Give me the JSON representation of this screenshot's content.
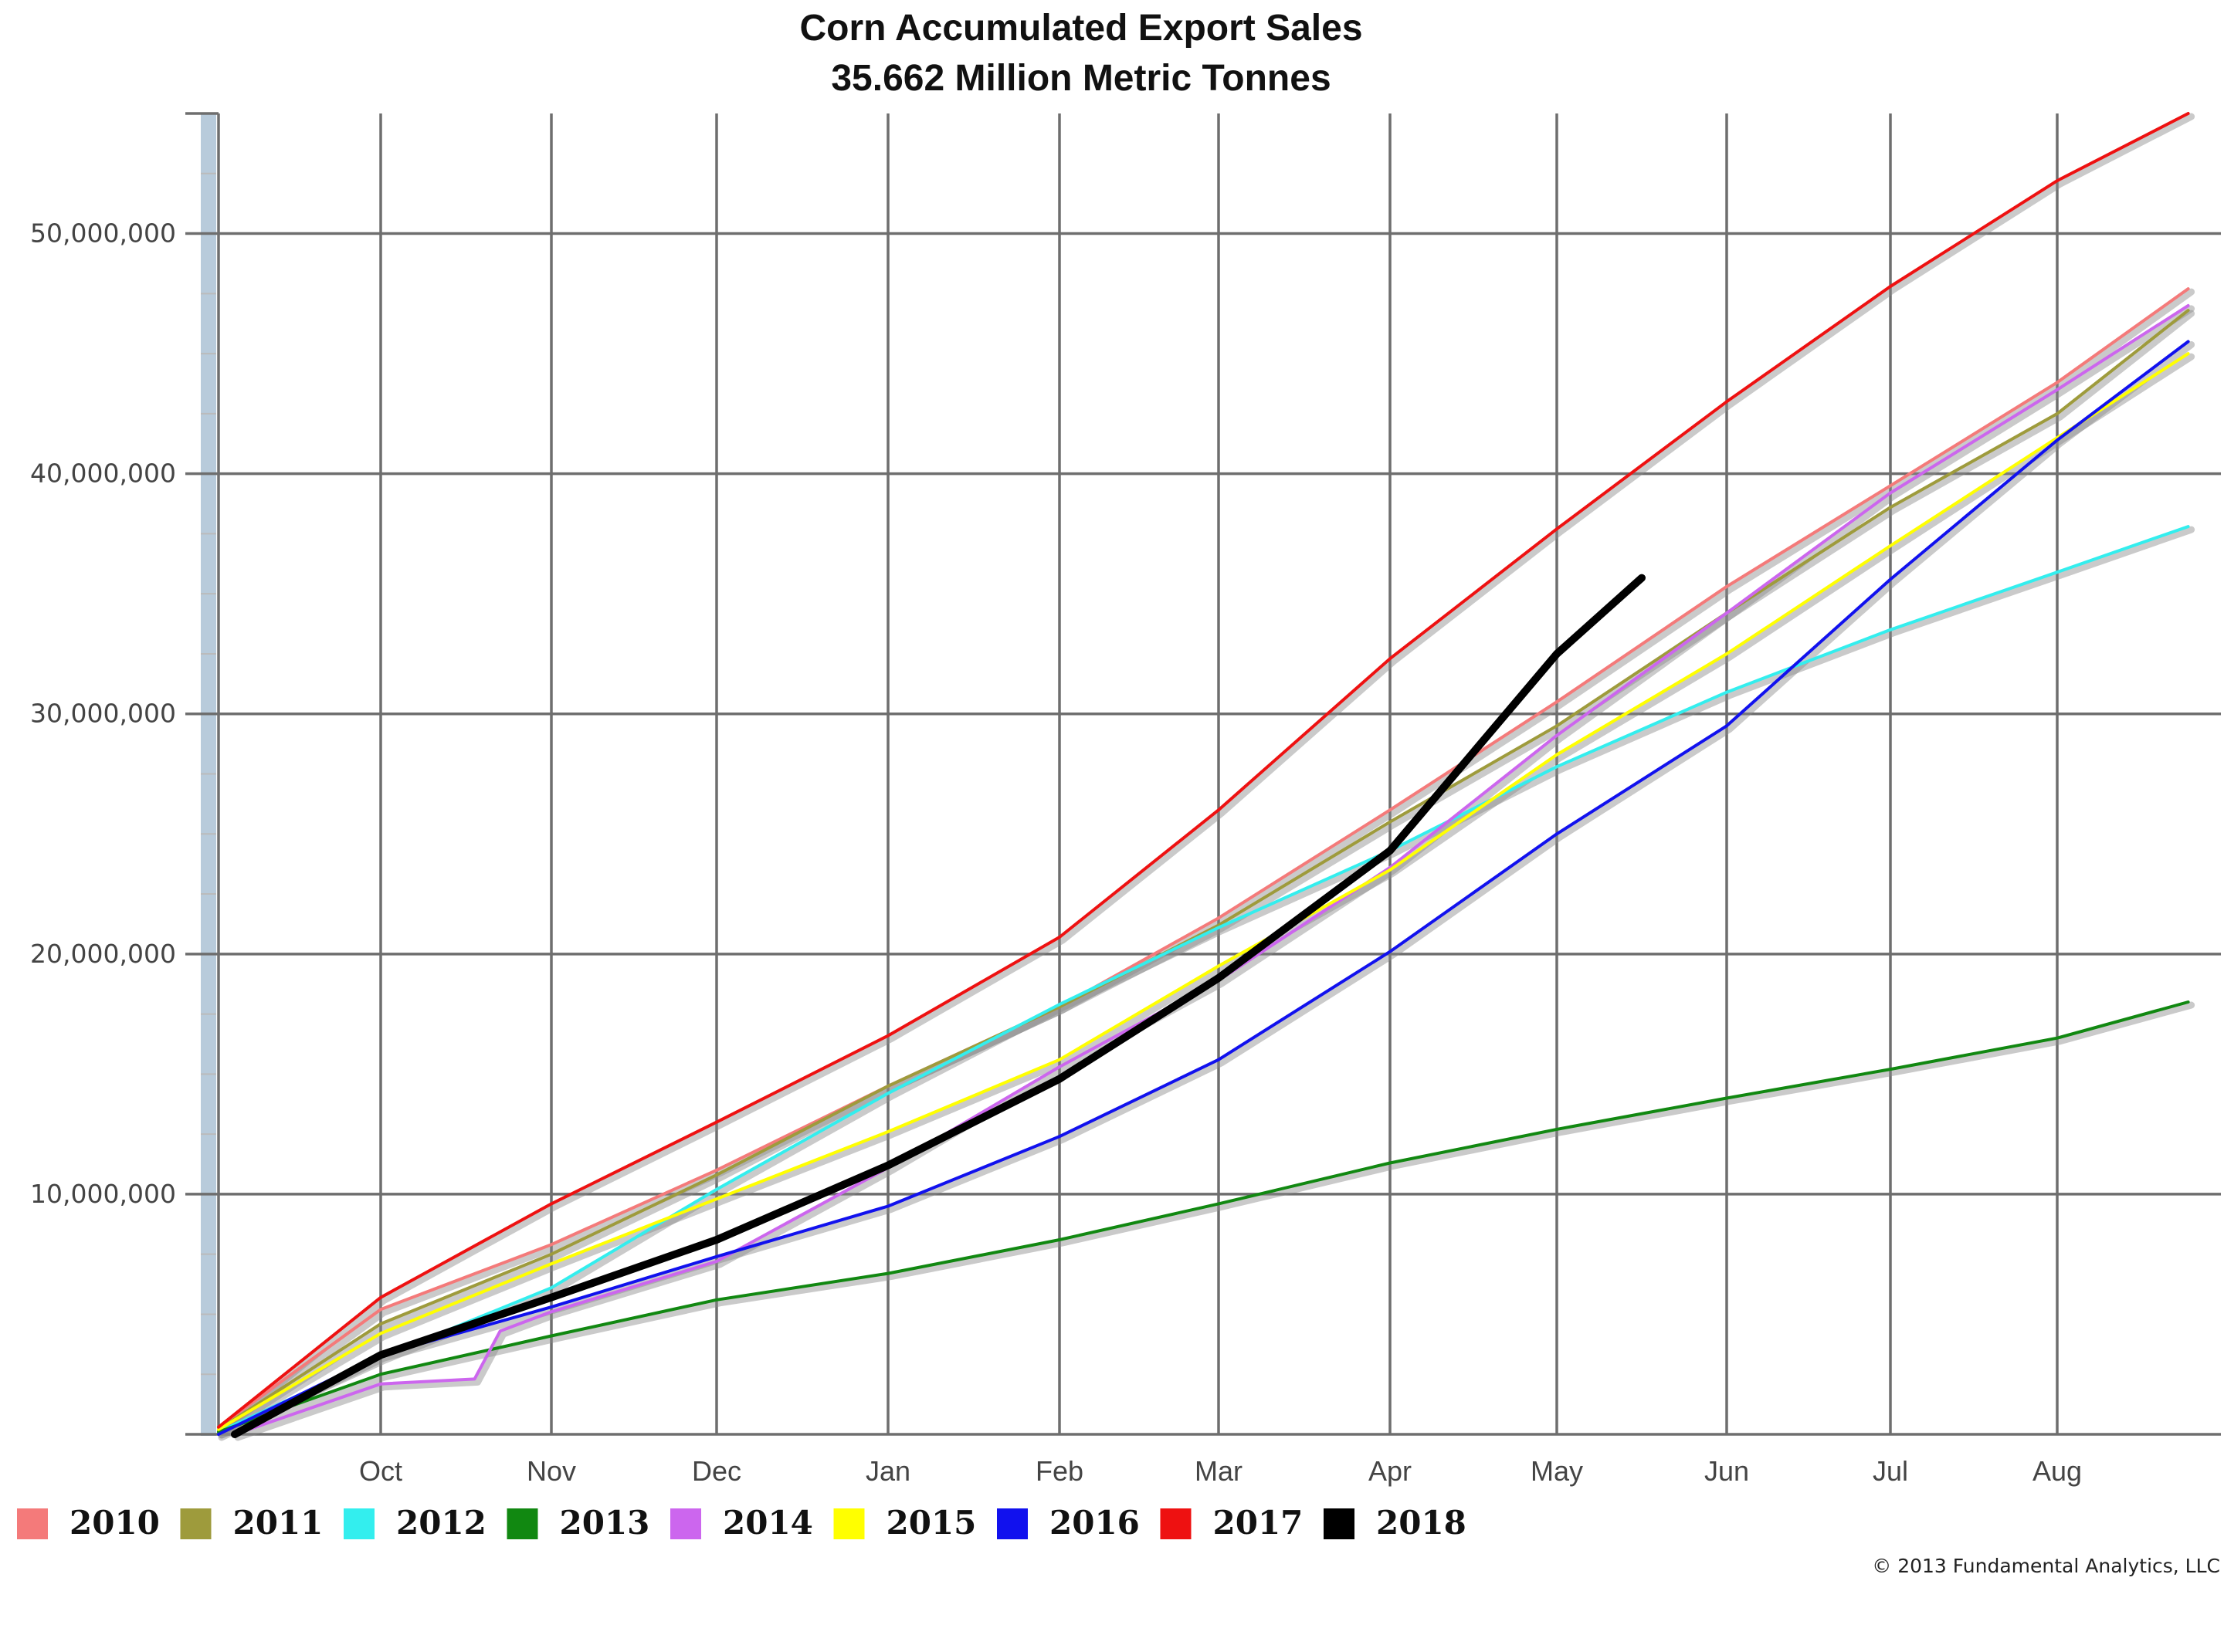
{
  "chart_data": {
    "type": "line",
    "title": "Corn Accumulated Export Sales",
    "subtitle": "35.662 Million Metric Tonnes",
    "xlabel": "",
    "ylabel": "",
    "ylim": [
      0,
      55000000
    ],
    "xlim": [
      "Sep",
      "Aug"
    ],
    "x_tick_labels": [
      "Oct",
      "Nov",
      "Dec",
      "Jan",
      "Feb",
      "Mar",
      "Apr",
      "May",
      "Jun",
      "Jul",
      "Aug"
    ],
    "y_ticks": [
      10000000,
      20000000,
      30000000,
      40000000,
      50000000
    ],
    "y_tick_labels": [
      "10,000,000",
      "20,000,000",
      "30,000,000",
      "40,000,000",
      "50,000,000"
    ],
    "grid": true,
    "legend_position": "bottom-left",
    "footer": "© 2013 Fundamental Analytics, LLC",
    "series": [
      {
        "name": "2010",
        "color": "#f47a7a",
        "shadow": true,
        "points": [
          [
            0,
            0.3
          ],
          [
            1,
            5.2
          ],
          [
            2,
            7.9
          ],
          [
            3,
            11
          ],
          [
            4,
            14.5
          ],
          [
            5,
            17.8
          ],
          [
            6,
            21.5
          ],
          [
            7,
            26
          ],
          [
            8,
            30.5
          ],
          [
            9,
            35.3
          ],
          [
            10,
            39.5
          ],
          [
            11,
            43.8
          ],
          [
            11.8,
            47.7
          ]
        ]
      },
      {
        "name": "2011",
        "color": "#9e9b3c",
        "shadow": true,
        "points": [
          [
            0,
            0.2
          ],
          [
            1,
            4.6
          ],
          [
            2,
            7.5
          ],
          [
            3,
            10.8
          ],
          [
            4,
            14.5
          ],
          [
            5,
            17.8
          ],
          [
            6,
            21.2
          ],
          [
            7,
            25.5
          ],
          [
            8,
            29.5
          ],
          [
            9,
            34.2
          ],
          [
            10,
            38.6
          ],
          [
            11,
            42.5
          ],
          [
            11.8,
            46.8
          ]
        ]
      },
      {
        "name": "2012",
        "color": "#33eeee",
        "shadow": true,
        "points": [
          [
            0,
            0.1
          ],
          [
            1,
            3.2
          ],
          [
            2,
            6.1
          ],
          [
            3,
            10.2
          ],
          [
            4,
            14.2
          ],
          [
            5,
            17.9
          ],
          [
            6,
            21.1
          ],
          [
            7,
            24.3
          ],
          [
            8,
            27.8
          ],
          [
            9,
            30.9
          ],
          [
            10,
            33.5
          ],
          [
            11,
            35.9
          ],
          [
            11.8,
            37.8
          ]
        ]
      },
      {
        "name": "2013",
        "color": "#118811",
        "shadow": true,
        "points": [
          [
            0,
            0.1
          ],
          [
            1,
            2.5
          ],
          [
            2,
            4.1
          ],
          [
            3,
            5.6
          ],
          [
            4,
            6.7
          ],
          [
            5,
            8.1
          ],
          [
            6,
            9.6
          ],
          [
            7,
            11.3
          ],
          [
            8,
            12.7
          ],
          [
            9,
            14
          ],
          [
            10,
            15.2
          ],
          [
            11,
            16.5
          ],
          [
            11.8,
            18
          ]
        ]
      },
      {
        "name": "2014",
        "color": "#cc66ee",
        "shadow": true,
        "points": [
          [
            0.1,
            0
          ],
          [
            1,
            2.1
          ],
          [
            1.55,
            2.3
          ],
          [
            1.7,
            4.3
          ],
          [
            2,
            5.1
          ],
          [
            3,
            7.2
          ],
          [
            4,
            11.1
          ],
          [
            5,
            15.3
          ],
          [
            6,
            18.9
          ],
          [
            7,
            23.6
          ],
          [
            8,
            29.1
          ],
          [
            9,
            34.2
          ],
          [
            10,
            39.2
          ],
          [
            11,
            43.5
          ],
          [
            11.8,
            47
          ]
        ]
      },
      {
        "name": "2015",
        "color": "#ffff00",
        "shadow": true,
        "points": [
          [
            0,
            0.2
          ],
          [
            1,
            4.2
          ],
          [
            2,
            7.1
          ],
          [
            3,
            9.8
          ],
          [
            4,
            12.6
          ],
          [
            5,
            15.6
          ],
          [
            6,
            19.5
          ],
          [
            7,
            23.5
          ],
          [
            8,
            28.3
          ],
          [
            9,
            32.5
          ],
          [
            10,
            37
          ],
          [
            11,
            41.5
          ],
          [
            11.8,
            45
          ]
        ]
      },
      {
        "name": "2016",
        "color": "#1111ee",
        "shadow": true,
        "points": [
          [
            0,
            0
          ],
          [
            1,
            3.3
          ],
          [
            2,
            5.3
          ],
          [
            3,
            7.4
          ],
          [
            4,
            9.5
          ],
          [
            5,
            12.4
          ],
          [
            6,
            15.6
          ],
          [
            7,
            20.1
          ],
          [
            8,
            25
          ],
          [
            9,
            29.5
          ],
          [
            10,
            35.6
          ],
          [
            11,
            41.4
          ],
          [
            11.8,
            45.5
          ]
        ]
      },
      {
        "name": "2017",
        "color": "#ee1111",
        "shadow": true,
        "points": [
          [
            0,
            0.3
          ],
          [
            1,
            5.7
          ],
          [
            2,
            9.6
          ],
          [
            3,
            13
          ],
          [
            4,
            16.6
          ],
          [
            5,
            20.7
          ],
          [
            6,
            26
          ],
          [
            7,
            32.3
          ],
          [
            8,
            37.7
          ],
          [
            9,
            43
          ],
          [
            10,
            47.8
          ],
          [
            11,
            52.2
          ],
          [
            11.8,
            55
          ]
        ]
      },
      {
        "name": "2018",
        "color": "#000000",
        "shadow": false,
        "points": [
          [
            0.1,
            0
          ],
          [
            1,
            3.3
          ],
          [
            2,
            5.7
          ],
          [
            3,
            8.1
          ],
          [
            4,
            11.2
          ],
          [
            5,
            14.8
          ],
          [
            6,
            19
          ],
          [
            7,
            24.3
          ],
          [
            8,
            32.5
          ],
          [
            8.5,
            35.662
          ]
        ]
      }
    ]
  }
}
